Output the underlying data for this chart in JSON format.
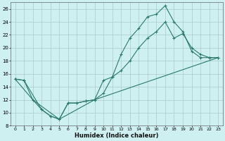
{
  "xlabel": "Humidex (Indice chaleur)",
  "background_color": "#cff0f0",
  "line_color": "#2a7a6a",
  "grid_color": "#aacccc",
  "xlim": [
    -0.5,
    23.5
  ],
  "ylim": [
    8,
    27
  ],
  "xticks": [
    0,
    1,
    2,
    3,
    4,
    5,
    6,
    7,
    8,
    9,
    10,
    11,
    12,
    13,
    14,
    15,
    16,
    17,
    18,
    19,
    20,
    21,
    22,
    23
  ],
  "yticks": [
    8,
    10,
    12,
    14,
    16,
    18,
    20,
    22,
    24,
    26
  ],
  "line1_x": [
    0,
    1,
    2,
    3,
    4,
    5,
    6,
    7,
    8,
    9,
    10,
    11,
    12,
    13,
    14,
    15,
    16,
    17,
    18,
    19,
    20,
    21,
    22,
    23
  ],
  "line1_y": [
    15.2,
    15.0,
    12.0,
    10.5,
    9.5,
    9.0,
    11.5,
    11.5,
    11.8,
    12.0,
    15.0,
    15.5,
    19.0,
    21.5,
    23.0,
    24.8,
    25.2,
    26.5,
    24.0,
    22.5,
    19.5,
    18.5,
    18.5,
    18.5
  ],
  "line2_x": [
    0,
    1,
    3,
    4,
    5,
    6,
    7,
    8,
    9,
    10,
    11,
    12,
    13,
    14,
    15,
    16,
    17,
    18,
    19,
    20,
    21,
    22,
    23
  ],
  "line2_y": [
    15.2,
    15.0,
    10.5,
    9.5,
    9.0,
    11.5,
    11.5,
    11.8,
    12.0,
    13.0,
    15.5,
    16.5,
    18.0,
    20.0,
    21.5,
    22.5,
    24.0,
    21.5,
    22.2,
    20.0,
    19.0,
    18.5,
    18.5
  ],
  "line3_x": [
    0,
    2,
    5,
    9,
    23
  ],
  "line3_y": [
    15.2,
    12.0,
    9.0,
    12.0,
    18.5
  ]
}
